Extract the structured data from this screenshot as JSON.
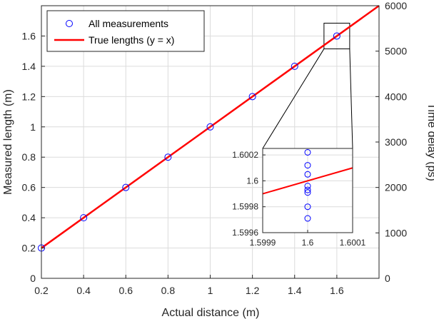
{
  "chart_data": [
    {
      "type": "line",
      "role": "main",
      "xlabel": "Actual distance (m)",
      "ylabel": "Measured length (m)",
      "ylabel_right": "Time delay (ps)",
      "xlim": [
        0.2,
        1.8
      ],
      "ylim": [
        0,
        1.8
      ],
      "ylim_right": [
        0,
        6000
      ],
      "xticks": [
        "0.2",
        "0.4",
        "0.6",
        "0.8",
        "1",
        "1.2",
        "1.4",
        "1.6"
      ],
      "xtick_values": [
        0.2,
        0.4,
        0.6,
        0.8,
        1.0,
        1.2,
        1.4,
        1.6
      ],
      "yticks": [
        "0",
        "0.2",
        "0.4",
        "0.6",
        "0.8",
        "1",
        "1.2",
        "1.4",
        "1.6"
      ],
      "ytick_values": [
        0,
        0.2,
        0.4,
        0.6,
        0.8,
        1.0,
        1.2,
        1.4,
        1.6
      ],
      "yticks_right": [
        "0",
        "1000",
        "2000",
        "3000",
        "4000",
        "5000",
        "6000"
      ],
      "ytick_values_right": [
        0,
        1000,
        2000,
        3000,
        4000,
        5000,
        6000
      ],
      "grid": true,
      "legend_placement": "top-left",
      "series": [
        {
          "name": "All measurements",
          "marker": "circle",
          "color": "#0000ff",
          "x": [
            0.2,
            0.4,
            0.6,
            0.8,
            1.0,
            1.2,
            1.4,
            1.6
          ],
          "y": [
            0.2,
            0.4,
            0.6,
            0.8,
            1.0,
            1.2,
            1.4,
            1.6
          ]
        },
        {
          "name": "True lengths (y = x)",
          "line": "solid",
          "color": "#ff0000",
          "x": [
            0.2,
            1.8
          ],
          "y": [
            0.2,
            1.8
          ]
        }
      ]
    },
    {
      "type": "line",
      "role": "inset",
      "xlim": [
        1.5999,
        1.6001
      ],
      "ylim": [
        1.5996,
        1.60025
      ],
      "xticks": [
        "1.5999",
        "1.6",
        "1.6001"
      ],
      "xtick_values": [
        1.5999,
        1.6,
        1.6001
      ],
      "yticks": [
        "1.5996",
        "1.5998",
        "1.6",
        "1.6002"
      ],
      "ytick_values": [
        1.5996,
        1.5998,
        1.6,
        1.6002
      ],
      "grid": true,
      "series": [
        {
          "marker": "circle",
          "color": "#0000ff",
          "x": [
            1.6,
            1.6,
            1.6,
            1.6,
            1.6,
            1.6,
            1.6,
            1.6
          ],
          "y": [
            1.60022,
            1.60012,
            1.60005,
            1.59996,
            1.59993,
            1.59991,
            1.5998,
            1.59971
          ]
        },
        {
          "line": "solid",
          "color": "#ff0000",
          "x": [
            1.5999,
            1.6001
          ],
          "y": [
            1.5999,
            1.6001
          ]
        }
      ]
    }
  ]
}
